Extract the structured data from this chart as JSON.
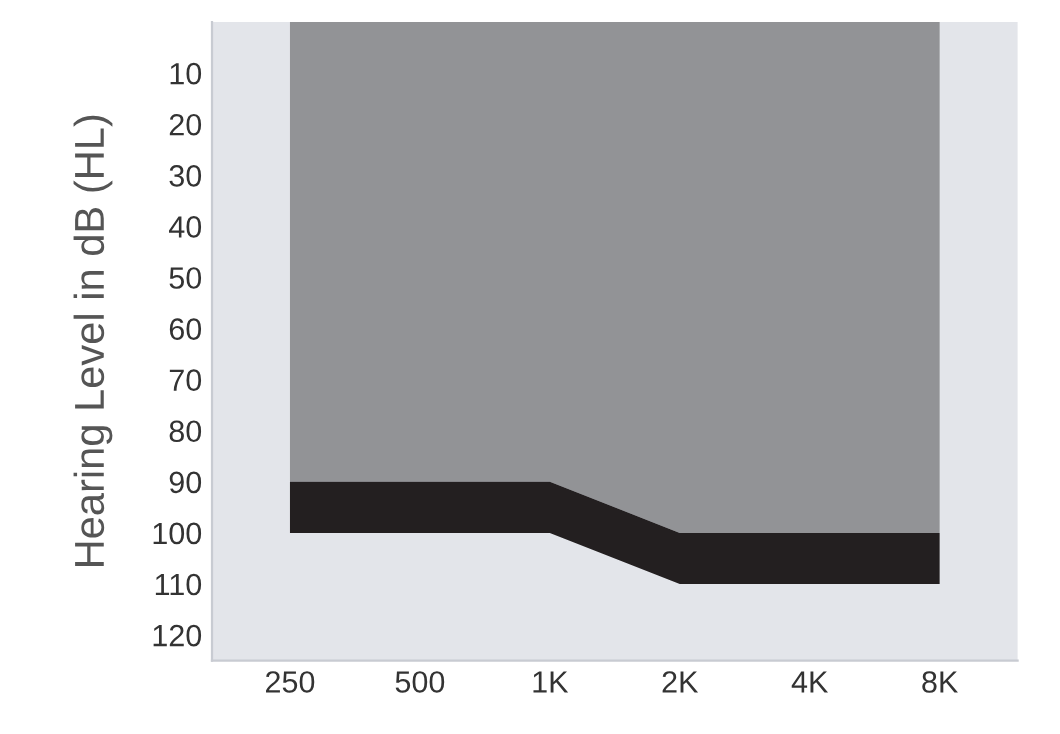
{
  "chart_data": {
    "type": "area",
    "stacked": true,
    "ylabel": "Hearing Level in dB (HL)",
    "categories": [
      "250",
      "500",
      "1K",
      "2K",
      "4K",
      "8K"
    ],
    "series": [
      {
        "color": "#929396",
        "values": [
          90,
          90,
          90,
          100,
          100,
          100
        ]
      },
      {
        "color": "#231f20",
        "values": [
          10,
          10,
          10,
          10,
          10,
          10
        ]
      }
    ],
    "ylim": [
      125,
      0
    ],
    "yticks": [
      10,
      20,
      30,
      40,
      50,
      60,
      70,
      80,
      90,
      100,
      110,
      120
    ],
    "grid": false,
    "legend": false
  }
}
